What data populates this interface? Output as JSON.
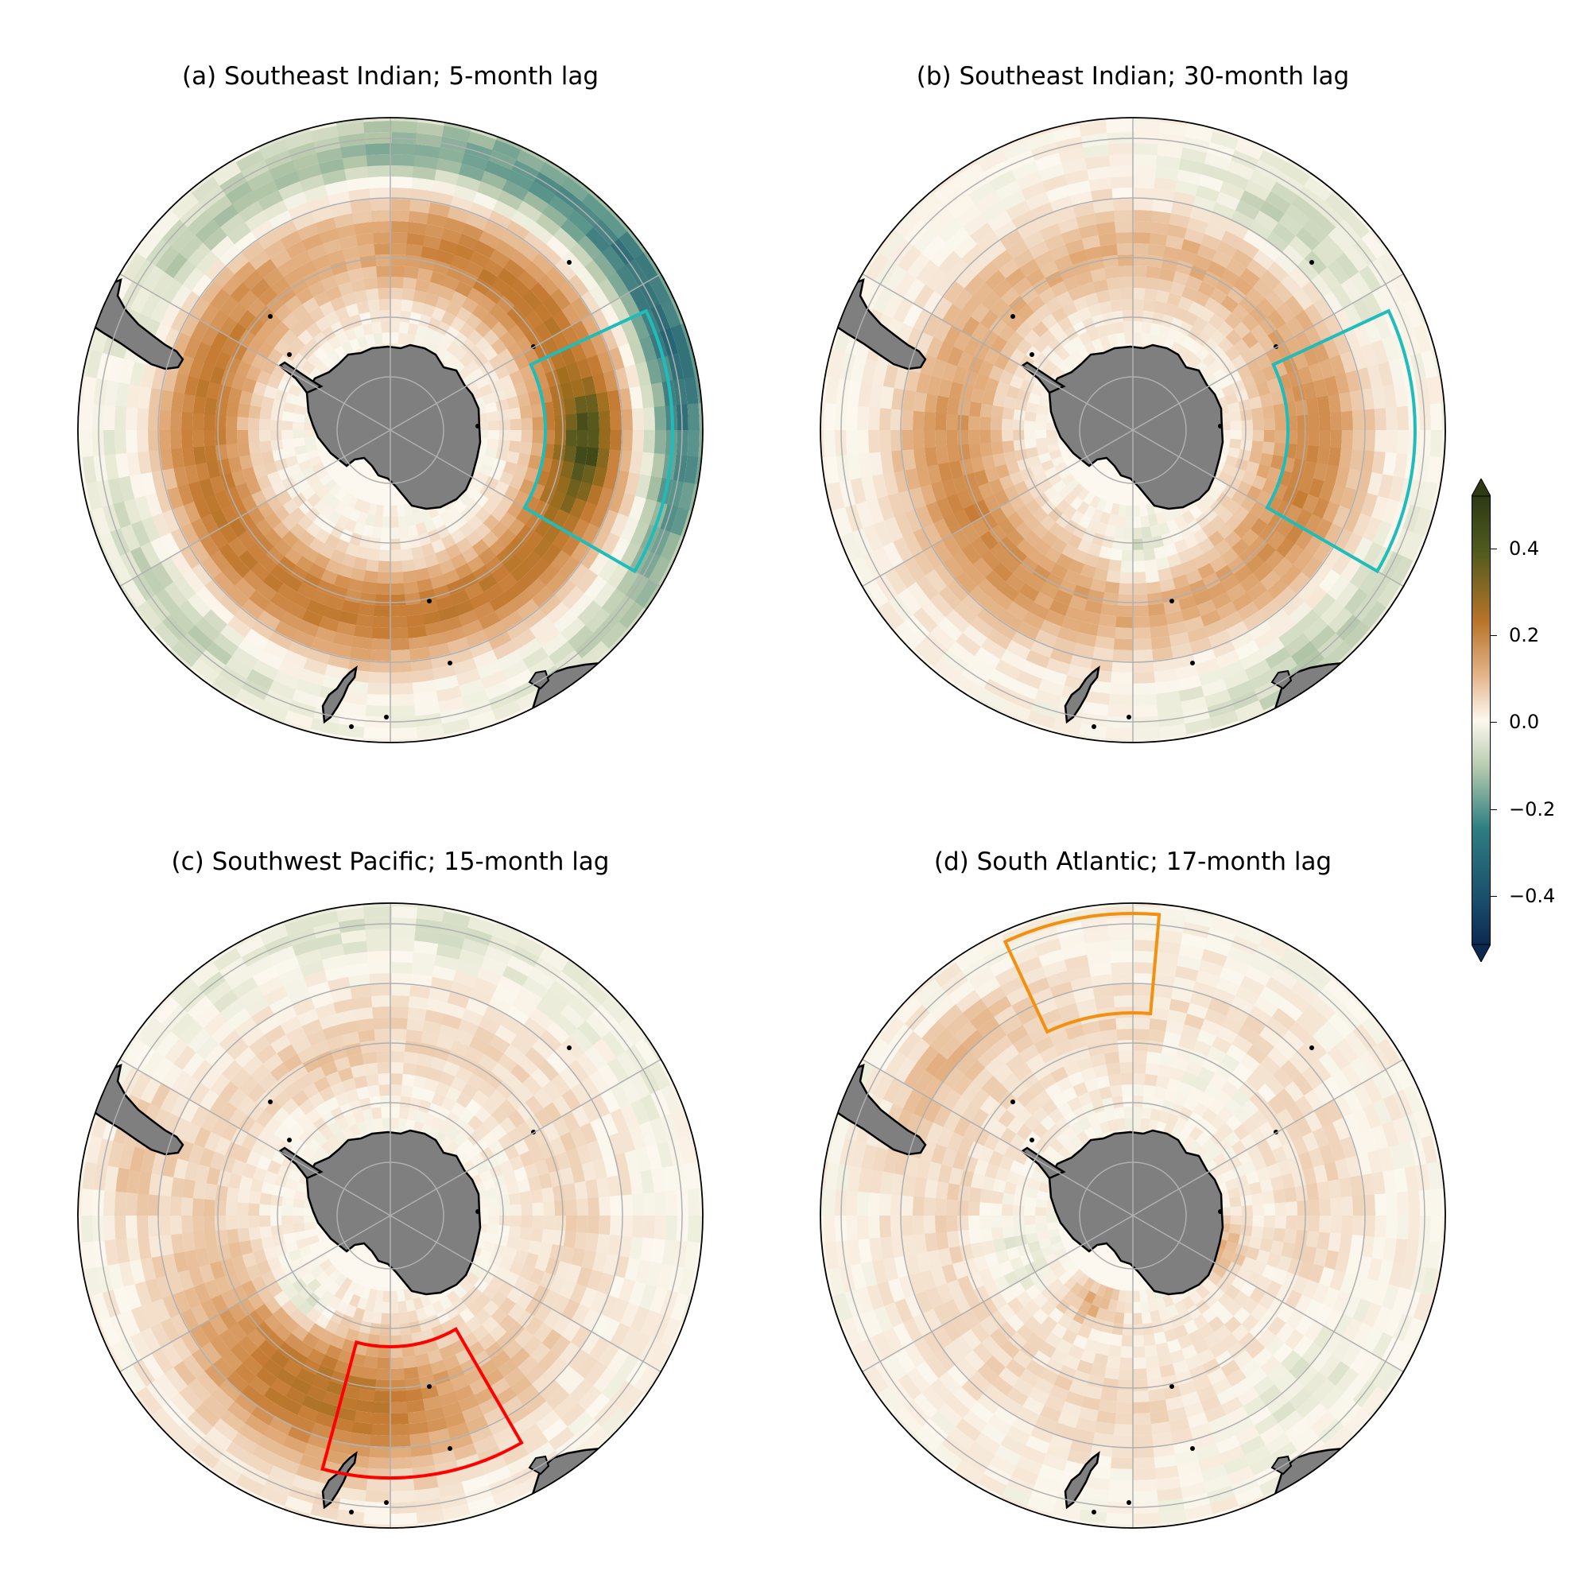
{
  "panels": [
    {
      "id": "a",
      "title": "(a) Southeast Indian; 5-month lag",
      "box_color": "#1fbcbc",
      "box_region": "Southeast Indian",
      "lag_months": 5
    },
    {
      "id": "b",
      "title": "(b) Southeast Indian; 30-month lag",
      "box_color": "#1fbcbc",
      "box_region": "Southeast Indian",
      "lag_months": 30
    },
    {
      "id": "c",
      "title": "(c) Southwest Pacific; 15-month lag",
      "box_color": "#ff0000",
      "box_region": "Southwest Pacific",
      "lag_months": 15
    },
    {
      "id": "d",
      "title": "(d) South Atlantic; 17-month lag",
      "box_color": "#f2900f",
      "box_region": "South Atlantic",
      "lag_months": 17
    }
  ],
  "colorbar": {
    "ticks": [
      "0.4",
      "0.2",
      "0.0",
      "−0.2",
      "−0.4"
    ],
    "range": [
      -0.5,
      0.5
    ],
    "extend": "both",
    "colors": {
      "neg_max": "#0c2a4f",
      "neg_mid": "#2a7c80",
      "neg_low": "#a8c4a6",
      "zero": "#fcf8ef",
      "pos_low": "#e9b98f",
      "pos_mid": "#c77a2e",
      "pos_max": "#2d3a14"
    }
  },
  "map": {
    "land_color": "#7f7f7f",
    "grid_color": "#b0b0b0",
    "coast_color": "#000000"
  }
}
